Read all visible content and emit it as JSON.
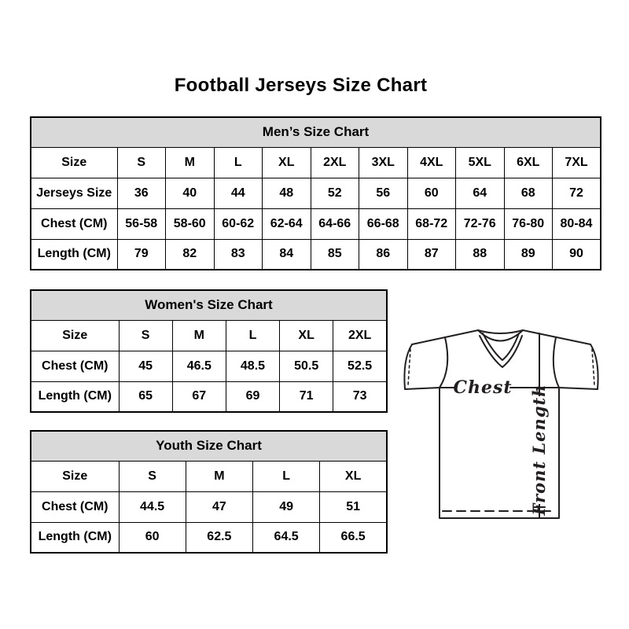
{
  "page": {
    "title": "Football Jerseys Size Chart"
  },
  "tables": [
    {
      "name": "mens",
      "title": "Men’s Size Chart",
      "rows": [
        [
          "Size",
          "S",
          "M",
          "L",
          "XL",
          "2XL",
          "3XL",
          "4XL",
          "5XL",
          "6XL",
          "7XL"
        ],
        [
          "Jerseys Size",
          "36",
          "40",
          "44",
          "48",
          "52",
          "56",
          "60",
          "64",
          "68",
          "72"
        ],
        [
          "Chest (CM)",
          "56-58",
          "58-60",
          "60-62",
          "62-64",
          "64-66",
          "66-68",
          "68-72",
          "72-76",
          "76-80",
          "80-84"
        ],
        [
          "Length (CM)",
          "79",
          "82",
          "83",
          "84",
          "85",
          "86",
          "87",
          "88",
          "89",
          "90"
        ]
      ]
    },
    {
      "name": "womens",
      "title": "Women's Size Chart",
      "rows": [
        [
          "Size",
          "S",
          "M",
          "L",
          "XL",
          "2XL"
        ],
        [
          "Chest (CM)",
          "45",
          "46.5",
          "48.5",
          "50.5",
          "52.5"
        ],
        [
          "Length (CM)",
          "65",
          "67",
          "69",
          "71",
          "73"
        ]
      ]
    },
    {
      "name": "youth",
      "title": "Youth Size Chart",
      "rows": [
        [
          "Size",
          "S",
          "M",
          "L",
          "XL"
        ],
        [
          "Chest (CM)",
          "44.5",
          "47",
          "49",
          "51"
        ],
        [
          "Length (CM)",
          "60",
          "62.5",
          "64.5",
          "66.5"
        ]
      ]
    }
  ],
  "diagram": {
    "chest_label": "Chest",
    "front_length_label": "Front Length"
  },
  "colors": {
    "table_header_bg": "#d9d9d9",
    "table_border": "#000000",
    "text": "#000000",
    "diagram_line": "#231f20"
  }
}
